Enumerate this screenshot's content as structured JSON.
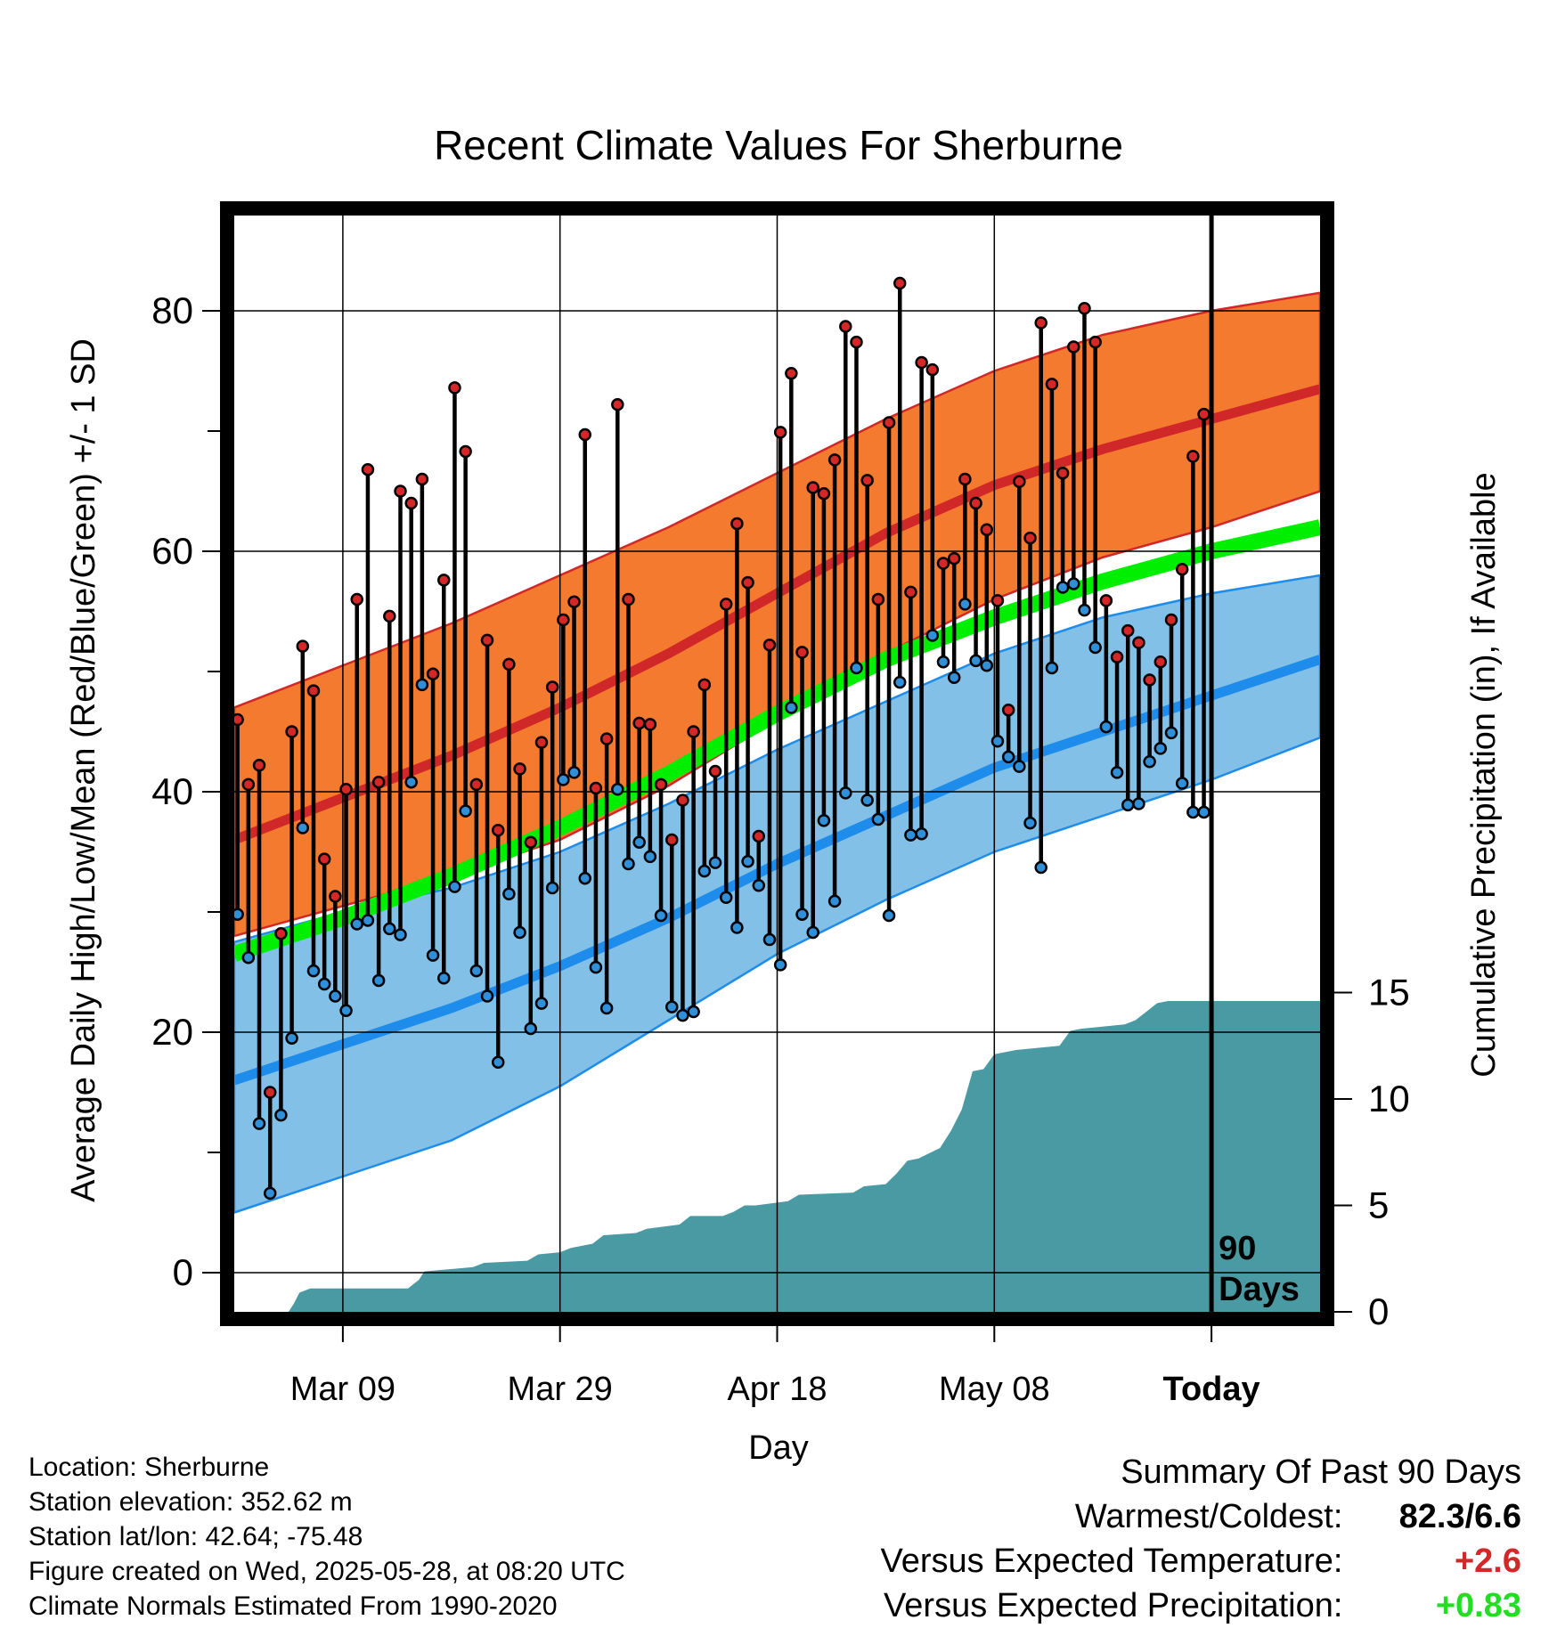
{
  "chart_data": {
    "type": "line",
    "title": "Recent Climate Values For Sherburne",
    "xlabel": "Day",
    "ylabel_left": "Average Daily High/Low/Mean (Red/Blue/Green) +/- 1 SD",
    "ylabel_right": "Cumulative Precipitation (in), If Available",
    "x_ticks": [
      {
        "day": 10,
        "label": "Mar 09"
      },
      {
        "day": 30,
        "label": "Mar 29"
      },
      {
        "day": 50,
        "label": "Apr 18"
      },
      {
        "day": 70,
        "label": "May 08"
      },
      {
        "day": 90,
        "label": "Today"
      }
    ],
    "xlim": [
      0,
      100
    ],
    "ylim_left": [
      -3,
      88
    ],
    "yticks_left": [
      0,
      20,
      40,
      60,
      80
    ],
    "yticks_right": [
      0,
      5,
      10,
      15
    ],
    "ylim_right_note": "precip axis: 0 at bottom of plot, 15 at left-axis value 23.3",
    "today_day": 90,
    "today_label": "90\nDays",
    "normals": {
      "x": [
        0,
        10,
        20,
        30,
        40,
        50,
        60,
        70,
        80,
        90,
        100
      ],
      "high_mean": [
        36,
        39.5,
        43,
        47,
        51.5,
        56.5,
        61.5,
        65.5,
        68.5,
        71,
        73.5
      ],
      "high_upper": [
        47,
        50.5,
        54,
        58,
        62,
        66.5,
        71,
        75,
        78,
        80,
        81.5
      ],
      "high_lower": [
        28,
        30.5,
        33,
        36,
        40.5,
        46,
        51.5,
        56,
        59.5,
        62,
        65
      ],
      "low_mean": [
        16,
        19,
        22,
        25.5,
        29.5,
        34,
        38,
        42,
        45,
        48,
        51
      ],
      "low_upper": [
        27.5,
        30,
        32,
        35,
        39,
        43.5,
        47.5,
        51.5,
        54.5,
        56.5,
        58
      ],
      "low_lower": [
        5,
        8,
        11,
        15.5,
        21,
        26.5,
        31,
        35,
        38,
        41,
        44.5
      ],
      "mean_mean": [
        26.5,
        29.5,
        33,
        37,
        41.5,
        46.5,
        51,
        54.5,
        57.5,
        60,
        62
      ]
    },
    "series": [
      {
        "name": "high",
        "color": "#d62728",
        "values": [
          46,
          40.6,
          42.2,
          15,
          28.2,
          45,
          52.1,
          48.4,
          34.4,
          31.3,
          40.2,
          56,
          66.8,
          40.8,
          54.6,
          65,
          64,
          66,
          49.8,
          57.6,
          73.6,
          68.3,
          40.6,
          52.6,
          36.8,
          50.6,
          41.9,
          35.8,
          44.1,
          48.7,
          54.3,
          55.8,
          69.7,
          40.3,
          44.4,
          72.2,
          56,
          45.7,
          45.6,
          40.6,
          36,
          39.3,
          45,
          48.9,
          41.7,
          55.6,
          62.3,
          57.4,
          36.3,
          52.2,
          69.9,
          74.8,
          51.6,
          65.3,
          64.8,
          67.6,
          78.7,
          77.4,
          65.9,
          56,
          70.7,
          82.3,
          56.6,
          75.7,
          75.1,
          59,
          59.4,
          66,
          64,
          61.8,
          55.9,
          46.8,
          65.8,
          61.1,
          79,
          73.9,
          66.5,
          77,
          80.2,
          77.4,
          55.9,
          51.2,
          53.4,
          52.4,
          49.3,
          50.8,
          54.3,
          58.5,
          67.9,
          71.4
        ]
      },
      {
        "name": "low",
        "color": "#2f8fd8",
        "values": [
          29.8,
          26.2,
          12.4,
          6.6,
          13.1,
          19.5,
          37,
          25.1,
          24,
          23,
          21.8,
          29,
          29.3,
          24.3,
          28.6,
          28.1,
          40.8,
          48.9,
          26.4,
          24.5,
          32.1,
          38.4,
          25.1,
          23,
          17.5,
          31.5,
          28.3,
          20.3,
          22.4,
          32,
          41,
          41.6,
          32.8,
          25.4,
          22,
          40.2,
          34,
          35.8,
          34.6,
          29.7,
          22.1,
          21.4,
          21.7,
          33.4,
          34.1,
          31.2,
          28.7,
          34.2,
          32.2,
          27.7,
          25.6,
          47,
          29.8,
          28.3,
          37.6,
          30.9,
          39.9,
          50.3,
          39.3,
          37.7,
          29.7,
          49.1,
          36.4,
          36.5,
          53,
          50.8,
          49.5,
          55.6,
          50.9,
          50.5,
          44.2,
          42.9,
          42.1,
          37.4,
          33.7,
          50.3,
          57,
          57.3,
          55.1,
          52,
          45.4,
          41.6,
          38.9,
          39,
          42.5,
          43.6,
          44.9,
          40.7,
          38.3,
          38.3
        ]
      }
    ],
    "precip_cumulative": {
      "x": [
        0,
        5,
        5.5,
        6,
        7,
        16,
        17,
        17.5,
        22,
        23,
        27,
        28,
        30,
        31,
        33,
        34,
        37,
        38,
        41,
        42,
        45,
        46,
        47,
        48,
        51,
        52,
        57,
        58,
        60,
        61,
        62,
        63,
        65,
        66,
        67,
        68,
        69,
        70,
        71,
        72,
        76,
        77,
        78,
        82,
        83,
        84,
        85,
        86,
        100
      ],
      "values": [
        0,
        0,
        0.4,
        0.9,
        1.1,
        1.1,
        1.5,
        1.9,
        2.1,
        2.3,
        2.4,
        2.7,
        2.8,
        3,
        3.2,
        3.6,
        3.7,
        3.9,
        4.1,
        4.5,
        4.5,
        4.7,
        5,
        5,
        5.2,
        5.5,
        5.6,
        5.9,
        6,
        6.5,
        7.1,
        7.2,
        7.7,
        8.5,
        9.5,
        11.3,
        11.4,
        12.1,
        12.2,
        12.3,
        12.5,
        13.2,
        13.3,
        13.5,
        13.7,
        14.1,
        14.5,
        14.6,
        14.6
      ]
    },
    "colors": {
      "high_band": "#f47a30",
      "high_line": "#d02828",
      "low_band": "#82c0e8",
      "low_line": "#1e8ceb",
      "mean_line": "#00ee00",
      "precip": "#4a9aa3"
    }
  },
  "info": {
    "location": "Location: Sherburne",
    "elevation": "Station elevation: 352.62 m",
    "latlon": "Station lat/lon: 42.64; -75.48",
    "created": "Figure created on Wed, 2025-05-28, at 08:20 UTC",
    "normals": "Climate Normals Estimated From 1990-2020"
  },
  "summary": {
    "title": "Summary Of Past 90 Days",
    "warm_cold_label": "Warmest/Coldest:",
    "warm_cold_value": "82.3/6.6",
    "temp_label": "Versus Expected Temperature:",
    "temp_value": "+2.6",
    "temp_color": "#d62728",
    "precip_label": "Versus Expected Precipitation:",
    "precip_value": "+0.83",
    "precip_color": "#22dd22"
  }
}
